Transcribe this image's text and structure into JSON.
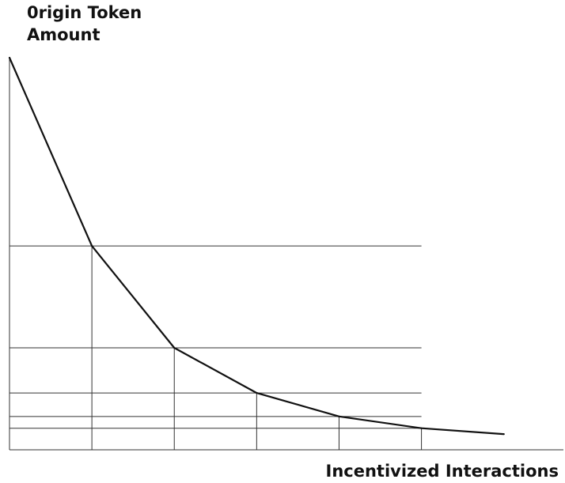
{
  "chart_data": {
    "type": "line",
    "title": "",
    "ylabel_lines": [
      "0rigin Token",
      "Amount"
    ],
    "xlabel": "Incentivized Interactions",
    "x": [
      0,
      1,
      2,
      3,
      4,
      5,
      6
    ],
    "y": [
      100,
      52,
      26,
      14.5,
      8.5,
      5.5,
      4
    ],
    "xlim": [
      0,
      6.8
    ],
    "ylim": [
      0,
      100
    ],
    "grid": "drop-lines at each interior point",
    "colors": {
      "line": "#111111",
      "grid": "#333333"
    }
  }
}
